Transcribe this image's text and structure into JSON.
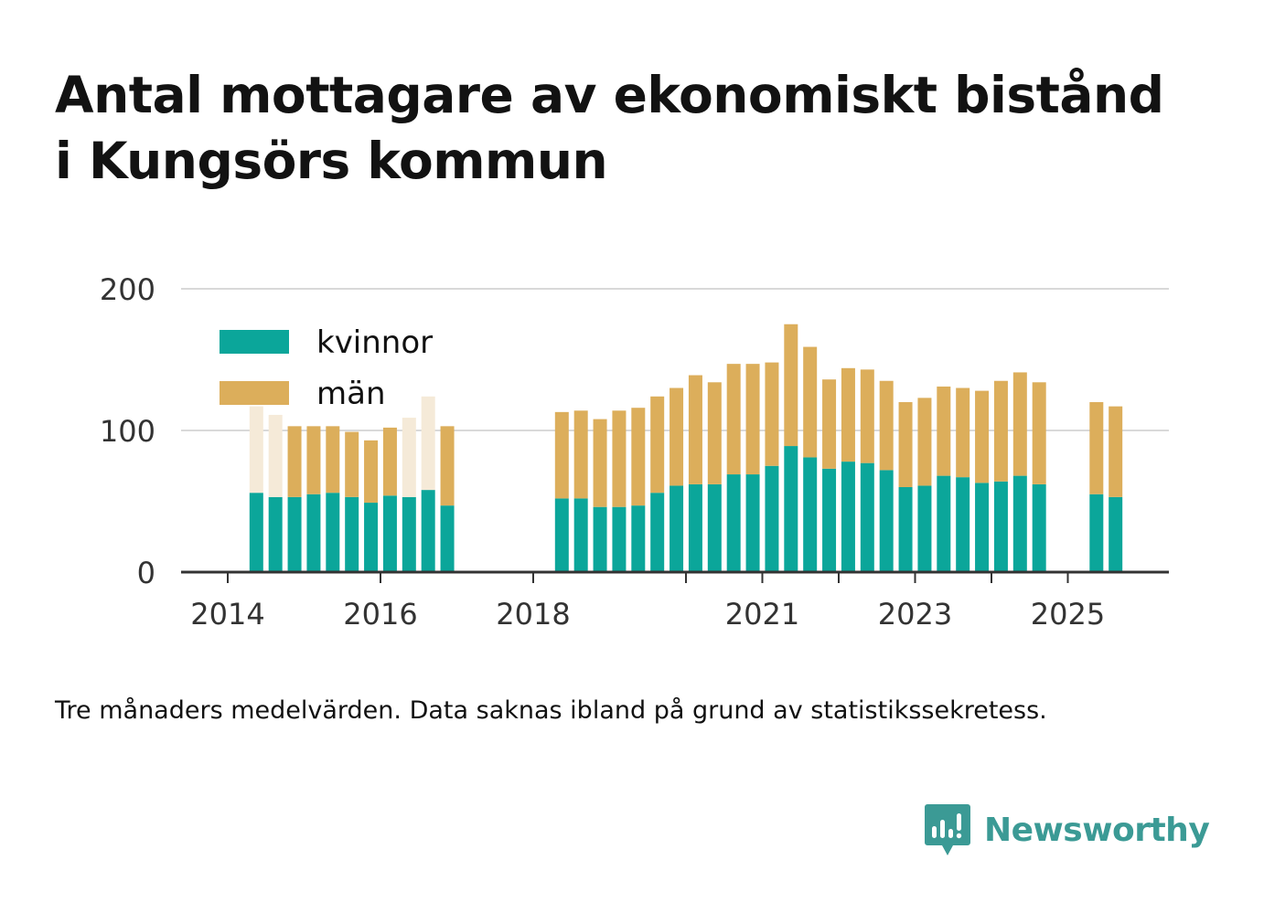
{
  "title_lines": [
    "Antal mottagare av ekonomiskt bistånd",
    "i Kungsörs kommun"
  ],
  "note": "Tre månaders medelvärden. Data saknas ibland på grund av statistikssekretess.",
  "brand": {
    "name": "Newsworthy",
    "icon": "newsworthy-chat-bars-icon"
  },
  "colors": {
    "kvinnor": "#0ba69a",
    "man": "#dcae5b",
    "faded": "#f5ead8",
    "grid": "#d9d9d9",
    "axis": "#333333",
    "brand": "#3b9a95"
  },
  "chart_data": {
    "type": "bar",
    "stacked": true,
    "ylim": [
      0,
      200
    ],
    "yticks": [
      0,
      100,
      200
    ],
    "xticks": [
      "2014",
      "2016",
      "2018",
      "2021",
      "2023",
      "2025"
    ],
    "grid": true,
    "legend_position": "top-left",
    "series": [
      {
        "name": "kvinnor",
        "key": "kvinnor"
      },
      {
        "name": "män",
        "key": "man"
      }
    ],
    "bars": [
      {
        "period": "2014-Q2",
        "kvinnor": 56,
        "man": 61,
        "faded_man": true
      },
      {
        "period": "2014-Q3",
        "kvinnor": 53,
        "man": 58,
        "faded_man": true
      },
      {
        "period": "2014-Q4",
        "kvinnor": 53,
        "man": 50
      },
      {
        "period": "2015-Q1",
        "kvinnor": 55,
        "man": 48
      },
      {
        "period": "2015-Q2",
        "kvinnor": 56,
        "man": 47
      },
      {
        "period": "2015-Q3",
        "kvinnor": 53,
        "man": 46
      },
      {
        "period": "2015-Q4",
        "kvinnor": 49,
        "man": 44
      },
      {
        "period": "2016-Q1",
        "kvinnor": 54,
        "man": 48
      },
      {
        "period": "2016-Q2",
        "kvinnor": 53,
        "man": 56,
        "faded_man": true
      },
      {
        "period": "2016-Q3",
        "kvinnor": 58,
        "man": 66,
        "faded_man": true
      },
      {
        "period": "2016-Q4",
        "kvinnor": 47,
        "man": 56
      },
      {
        "period": "2018-Q2",
        "kvinnor": 52,
        "man": 61
      },
      {
        "period": "2018-Q3",
        "kvinnor": 52,
        "man": 62
      },
      {
        "period": "2018-Q4",
        "kvinnor": 46,
        "man": 62
      },
      {
        "period": "2019-Q1",
        "kvinnor": 46,
        "man": 68
      },
      {
        "period": "2019-Q2",
        "kvinnor": 47,
        "man": 69
      },
      {
        "period": "2019-Q3",
        "kvinnor": 56,
        "man": 68
      },
      {
        "period": "2019-Q4",
        "kvinnor": 61,
        "man": 69
      },
      {
        "period": "2020-Q1",
        "kvinnor": 62,
        "man": 77
      },
      {
        "period": "2020-Q2",
        "kvinnor": 62,
        "man": 72
      },
      {
        "period": "2020-Q3",
        "kvinnor": 69,
        "man": 78
      },
      {
        "period": "2020-Q4",
        "kvinnor": 69,
        "man": 78
      },
      {
        "period": "2021-Q1",
        "kvinnor": 75,
        "man": 73
      },
      {
        "period": "2021-Q2",
        "kvinnor": 89,
        "man": 86
      },
      {
        "period": "2021-Q3",
        "kvinnor": 81,
        "man": 78
      },
      {
        "period": "2021-Q4",
        "kvinnor": 73,
        "man": 63
      },
      {
        "period": "2022-Q1",
        "kvinnor": 78,
        "man": 66
      },
      {
        "period": "2022-Q2",
        "kvinnor": 77,
        "man": 66
      },
      {
        "period": "2022-Q3",
        "kvinnor": 72,
        "man": 63
      },
      {
        "period": "2022-Q4",
        "kvinnor": 60,
        "man": 60
      },
      {
        "period": "2023-Q1",
        "kvinnor": 61,
        "man": 62
      },
      {
        "period": "2023-Q2",
        "kvinnor": 68,
        "man": 63
      },
      {
        "period": "2023-Q3",
        "kvinnor": 67,
        "man": 63
      },
      {
        "period": "2023-Q4",
        "kvinnor": 63,
        "man": 65
      },
      {
        "period": "2024-Q1",
        "kvinnor": 64,
        "man": 71
      },
      {
        "period": "2024-Q2",
        "kvinnor": 68,
        "man": 73
      },
      {
        "period": "2024-Q3",
        "kvinnor": 62,
        "man": 72
      },
      {
        "period": "2025-Q2",
        "kvinnor": 55,
        "man": 65
      },
      {
        "period": "2025-Q3",
        "kvinnor": 53,
        "man": 64
      }
    ]
  }
}
